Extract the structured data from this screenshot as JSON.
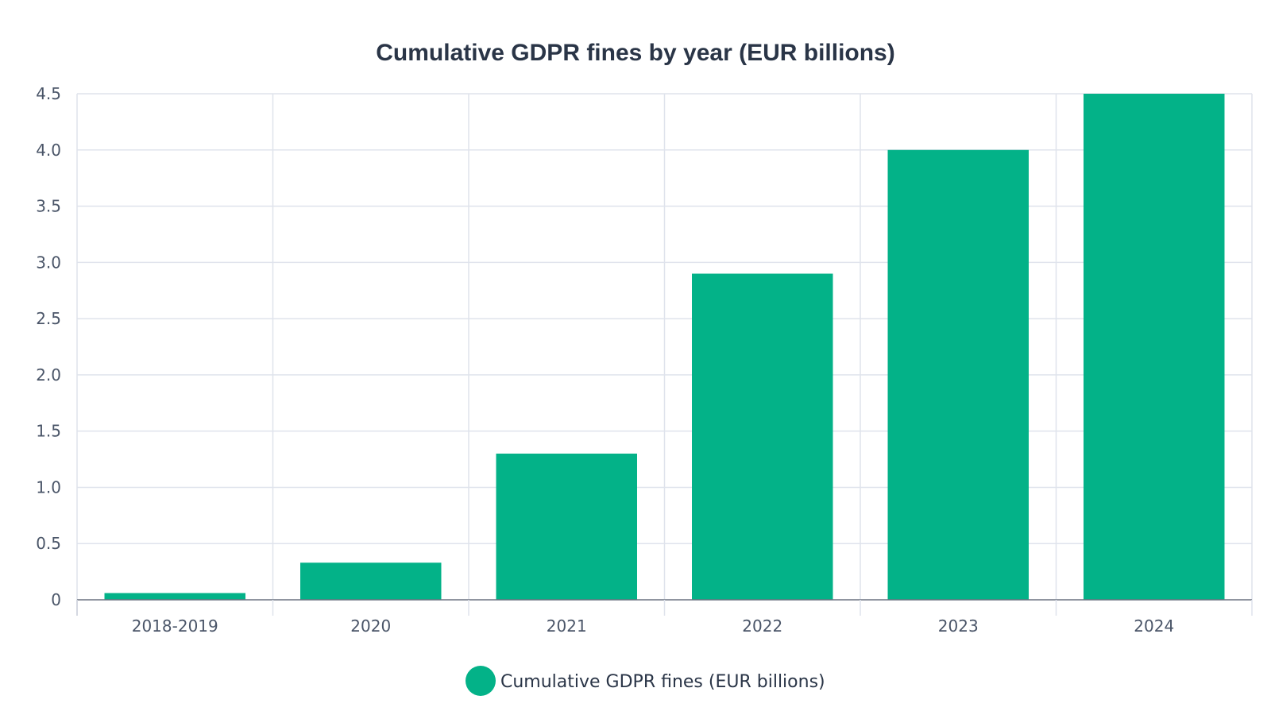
{
  "chart_data": {
    "type": "bar",
    "title": "Cumulative GDPR fines by year (EUR billions)",
    "xlabel": "",
    "ylabel": "",
    "categories": [
      "2018-2019",
      "2020",
      "2021",
      "2022",
      "2023",
      "2024"
    ],
    "series": [
      {
        "name": "Cumulative GDPR fines (EUR billions)",
        "values": [
          0.06,
          0.33,
          1.3,
          2.9,
          4.0,
          4.5
        ],
        "color": "#03b288"
      }
    ],
    "ylim": [
      0,
      4.5
    ],
    "y_ticks": [
      "0",
      "0.5",
      "1.0",
      "1.5",
      "2.0",
      "2.5",
      "3.0",
      "3.5",
      "4.0",
      "4.5"
    ],
    "grid": true,
    "legend_position": "bottom-center"
  }
}
